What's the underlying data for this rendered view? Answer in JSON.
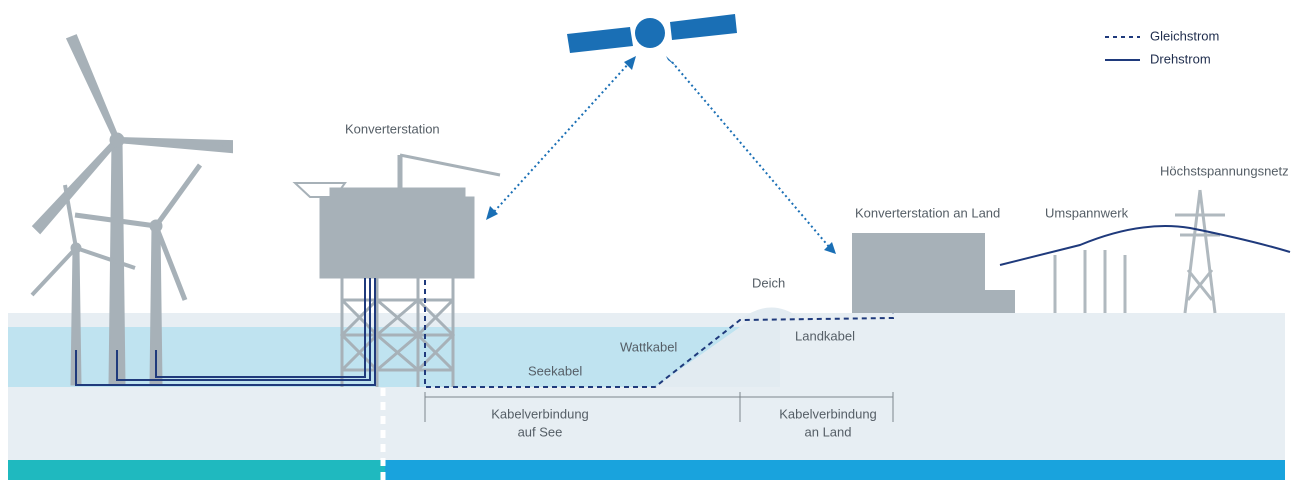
{
  "legend": {
    "dc": "Gleichstrom",
    "ac": "Drehstrom"
  },
  "labels": {
    "offshore_station": "Konverterstation",
    "grid": "Höchstspannungsnetz",
    "onshore_station": "Konverterstation an Land",
    "substation": "Umspannwerk",
    "dike": "Deich",
    "land_cable": "Landkabel",
    "tidal_cable": "Wattkabel",
    "sea_cable": "Seekabel"
  },
  "spans": {
    "sea": [
      "Kabelverbindung",
      "auf See"
    ],
    "land": [
      "Kabelverbindung",
      "an Land"
    ]
  }
}
